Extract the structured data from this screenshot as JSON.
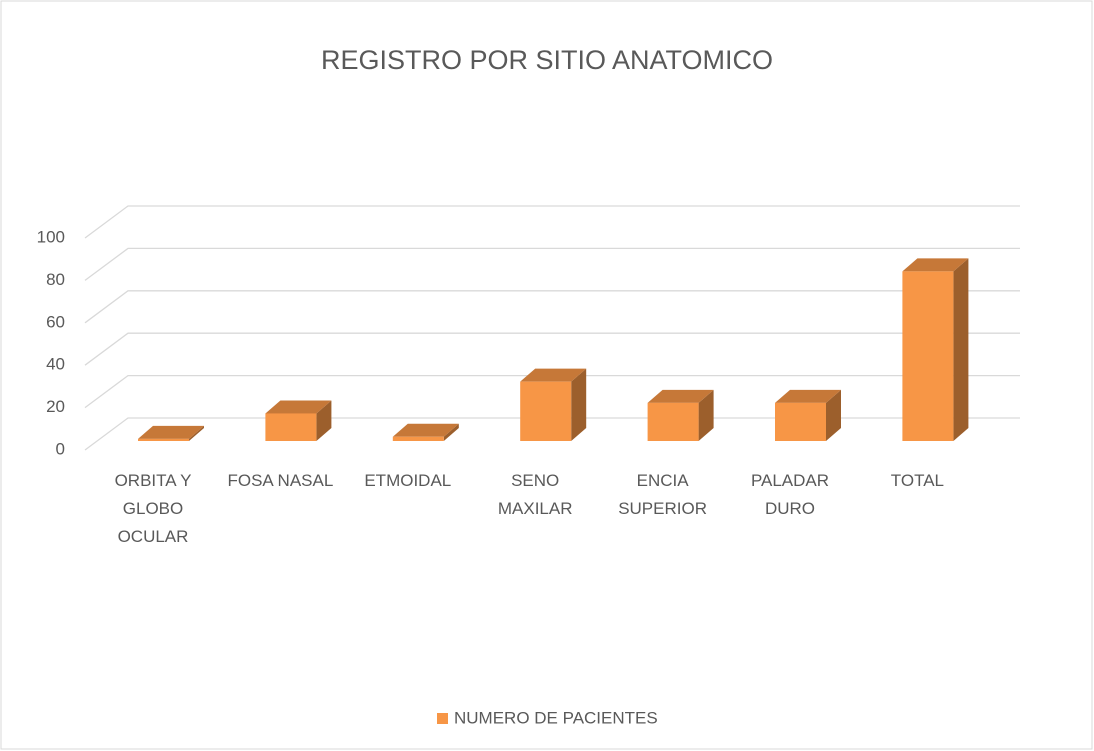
{
  "chart_data": {
    "type": "bar3d",
    "title": "REGISTRO POR SITIO ANATOMICO",
    "categories": [
      "ORBITA Y GLOBO OCULAR",
      "FOSA NASAL",
      "ETMOIDAL",
      "SENO MAXILAR",
      "ENCIA SUPERIOR",
      "PALADAR DURO",
      "TOTAL"
    ],
    "series": [
      {
        "name": "NUMERO DE PACIENTES",
        "color": "#f79646",
        "values": [
          1,
          13,
          2,
          28,
          18,
          18,
          80
        ]
      }
    ],
    "ylim": [
      0,
      100
    ],
    "yticks": [
      0,
      20,
      40,
      60,
      80,
      100
    ],
    "grid": true,
    "legend": "bottom"
  }
}
